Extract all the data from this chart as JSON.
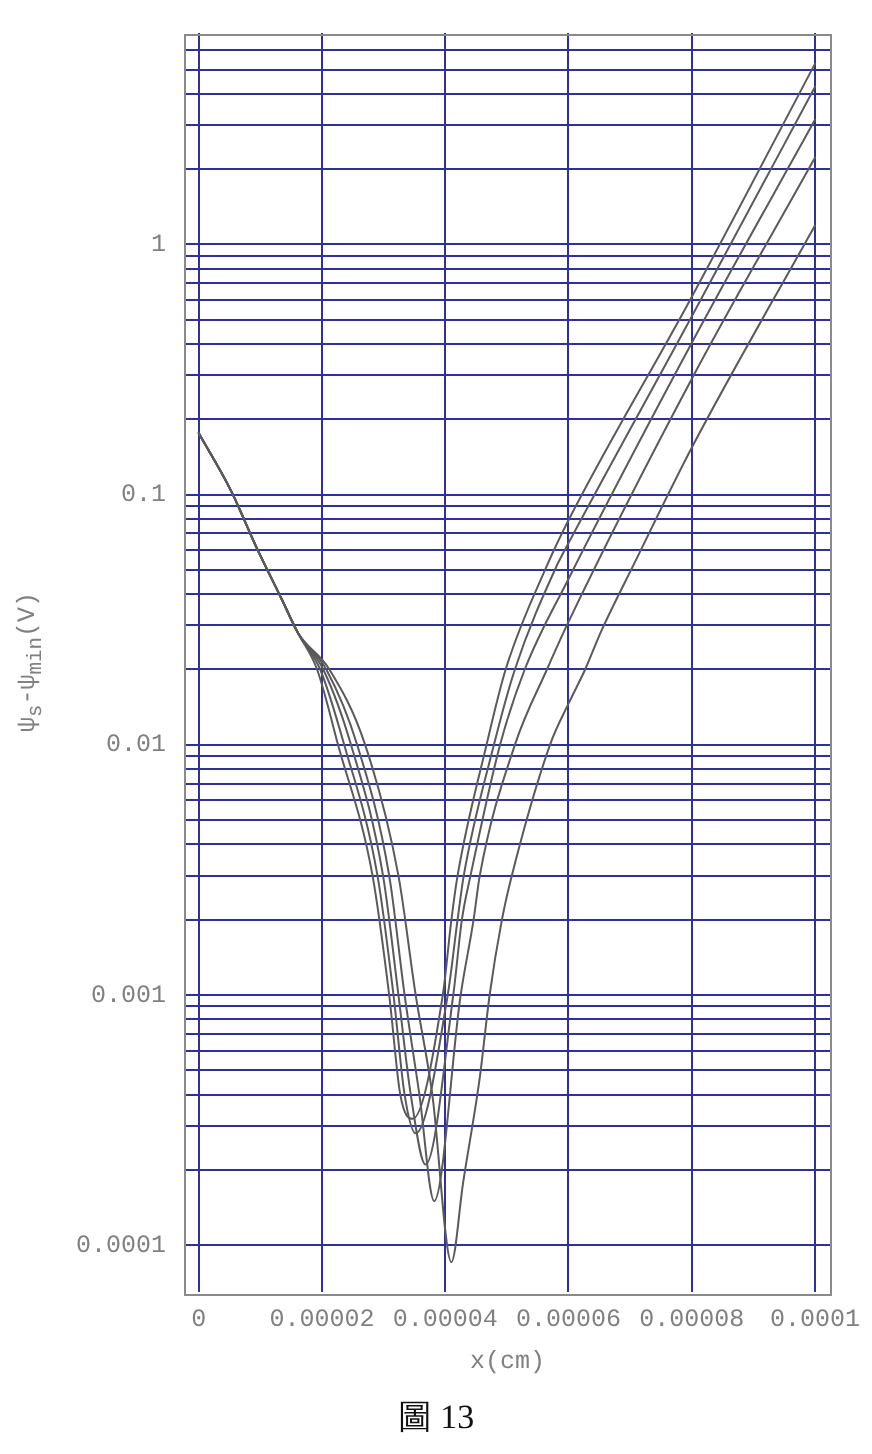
{
  "chart_data": {
    "type": "line",
    "xlabel": "x(cm)",
    "ylabel": "ψ$_{s}$-ψ$_{min}$(V)",
    "annotations": [
      "圖 13"
    ],
    "xlim": [
      -2.4e-06,
      0.0001026
    ],
    "xticks": [
      {
        "value": 0,
        "label": "0"
      },
      {
        "value": 2e-05,
        "label": "0.00002"
      },
      {
        "value": 4e-05,
        "label": "0.00004"
      },
      {
        "value": 6e-05,
        "label": "0.00006"
      },
      {
        "value": 8e-05,
        "label": "0.00008"
      },
      {
        "value": 0.0001,
        "label": "0.0001"
      }
    ],
    "ylim": [
      6.5e-05,
      7
    ],
    "yticks": [
      0.0001,
      {
        "value": 0.0002,
        "label": null
      },
      {
        "value": 0.0003,
        "label": null
      },
      {
        "value": 0.0004,
        "label": null
      },
      {
        "value": 0.0005,
        "label": null
      },
      {
        "value": 0.0006,
        "label": null
      },
      {
        "value": 0.0007,
        "label": null
      },
      {
        "value": 0.0008,
        "label": null
      },
      {
        "value": 0.0009,
        "label": null
      },
      0.001,
      {
        "value": 0.002,
        "label": null
      },
      {
        "value": 0.003,
        "label": null
      },
      {
        "value": 0.004,
        "label": null
      },
      {
        "value": 0.005,
        "label": null
      },
      {
        "value": 0.006,
        "label": null
      },
      {
        "value": 0.007,
        "label": null
      },
      {
        "value": 0.008,
        "label": null
      },
      {
        "value": 0.009,
        "label": null
      },
      0.01,
      {
        "value": 0.02,
        "label": null
      },
      {
        "value": 0.03,
        "label": null
      },
      {
        "value": 0.04,
        "label": null
      },
      {
        "value": 0.05,
        "label": null
      },
      {
        "value": 0.06,
        "label": null
      },
      {
        "value": 0.07,
        "label": null
      },
      {
        "value": 0.08,
        "label": null
      },
      {
        "value": 0.09,
        "label": null
      },
      0.1,
      {
        "value": 0.2,
        "label": null
      },
      {
        "value": 0.3,
        "label": null
      },
      {
        "value": 0.4,
        "label": null
      },
      {
        "value": 0.5,
        "label": null
      },
      {
        "value": 0.6,
        "label": null
      },
      {
        "value": 0.7,
        "label": null
      },
      {
        "value": 0.8,
        "label": null
      },
      {
        "value": 0.9,
        "label": null
      },
      1,
      {
        "value": 2,
        "label": null
      },
      {
        "value": 3,
        "label": null
      },
      {
        "value": 4,
        "label": null
      },
      {
        "value": 5,
        "label": null
      },
      {
        "value": 6,
        "label": null
      }
    ],
    "log": "y",
    "grid": true,
    "series": [
      {
        "color": "#5a5a5a",
        "x": [
          0,
          5.2e-06,
          9.3e-06,
          1.35e-05,
          1.61e-05,
          1.92e-05,
          2.26e-05,
          2.82e-05,
          3.09e-05,
          3.27e-05,
          3.47e-05,
          3.96e-05,
          4.1e-05,
          4.2e-05,
          4.67e-05,
          4.98e-05,
          5.65e-05,
          6e-05,
          8e-05,
          0.0001
        ],
        "values": [
          0.176,
          0.104,
          0.062,
          0.038,
          0.028,
          0.02,
          0.01,
          0.003,
          0.001,
          0.0004,
          0.00032,
          0.001,
          0.002,
          0.003,
          0.01,
          0.02,
          0.052,
          0.079,
          0.617,
          5.27
        ]
      },
      {
        "color": "#5a5a5a",
        "x": [
          0,
          5.2e-06,
          9.3e-06,
          1.35e-05,
          1.61e-05,
          1.97e-05,
          2.36e-05,
          2.9e-05,
          3.16e-05,
          3.34e-05,
          3.52e-05,
          4.04e-05,
          4.2e-05,
          4.3e-05,
          4.79e-05,
          5.13e-05,
          5.81e-05,
          6e-05,
          8e-05,
          0.0001
        ],
        "values": [
          0.176,
          0.104,
          0.062,
          0.038,
          0.028,
          0.02,
          0.01,
          0.003,
          0.001,
          0.0004,
          0.00028,
          0.001,
          0.002,
          0.003,
          0.01,
          0.02,
          0.052,
          0.064,
          0.515,
          4.26
        ]
      },
      {
        "color": "#5a5a5a",
        "x": [
          0,
          5.2e-06,
          9.3e-06,
          1.35e-05,
          1.61e-05,
          2.02e-05,
          2.47e-05,
          2.99e-05,
          3.24e-05,
          3.44e-05,
          3.68e-05,
          4.13e-05,
          4.27e-05,
          4.41e-05,
          4.89e-05,
          5.29e-05,
          6e-05,
          8e-05,
          0.0001
        ],
        "values": [
          0.176,
          0.104,
          0.062,
          0.038,
          0.028,
          0.02,
          0.01,
          0.003,
          0.001,
          0.0004,
          0.00021,
          0.001,
          0.002,
          0.003,
          0.01,
          0.02,
          0.046,
          0.404,
          3.15
        ]
      },
      {
        "color": "#5a5a5a",
        "x": [
          0,
          5.2e-06,
          9.3e-06,
          1.35e-05,
          1.61e-05,
          2.07e-05,
          2.57e-05,
          3.09e-05,
          3.34e-05,
          3.58e-05,
          3.82e-05,
          4.25e-05,
          4.46e-05,
          4.56e-05,
          5.13e-05,
          5.65e-05,
          6e-05,
          8e-05,
          0.0001
        ],
        "values": [
          0.176,
          0.104,
          0.062,
          0.038,
          0.028,
          0.02,
          0.01,
          0.003,
          0.001,
          0.0004,
          0.00015,
          0.001,
          0.002,
          0.003,
          0.01,
          0.02,
          0.031,
          0.29,
          2.22
        ]
      },
      {
        "color": "#5a5a5a",
        "x": [
          0,
          5.2e-06,
          9.3e-06,
          1.35e-05,
          1.61e-05,
          2.12e-05,
          2.7e-05,
          3.24e-05,
          3.52e-05,
          3.79e-05,
          4.1e-05,
          4.29e-05,
          4.56e-05,
          4.72e-05,
          4.92e-05,
          5.08e-05,
          5.7e-05,
          6e-05,
          6.27e-05,
          6.53e-05,
          7.05e-05,
          8e-05,
          0.0001
        ],
        "values": [
          0.176,
          0.104,
          0.062,
          0.038,
          0.028,
          0.02,
          0.01,
          0.003,
          0.001,
          0.0004,
          8.55e-05,
          0.000178,
          0.000467,
          0.001,
          0.002,
          0.003,
          0.01,
          0.0146,
          0.02,
          0.0284,
          0.052,
          0.154,
          1.19
        ]
      }
    ]
  }
}
